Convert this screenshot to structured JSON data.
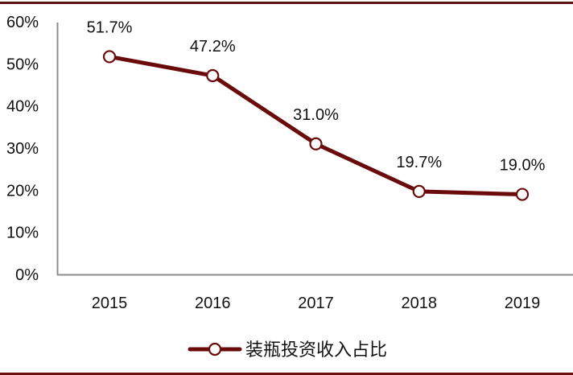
{
  "chart_data": {
    "type": "line",
    "title": "",
    "xlabel": "",
    "ylabel": "",
    "categories": [
      "2015",
      "2016",
      "2017",
      "2018",
      "2019"
    ],
    "series": [
      {
        "name": "装瓶投资收入占比",
        "values": [
          51.7,
          47.2,
          31.0,
          19.7,
          19.0
        ],
        "data_labels": [
          "51.7%",
          "47.2%",
          "31.0%",
          "19.7%",
          "19.0%"
        ],
        "color": "#6b0a0a",
        "marker": "hollow-circle"
      }
    ],
    "yticks": [
      "0%",
      "10%",
      "20%",
      "30%",
      "40%",
      "50%",
      "60%"
    ],
    "ylim": [
      0,
      60
    ],
    "grid": false,
    "legend_position": "bottom"
  },
  "colors": {
    "line": "#6b0a0a",
    "border": "#5a1212",
    "axis": "#8c8c8c"
  },
  "legend": {
    "label": "装瓶投资收入占比"
  }
}
